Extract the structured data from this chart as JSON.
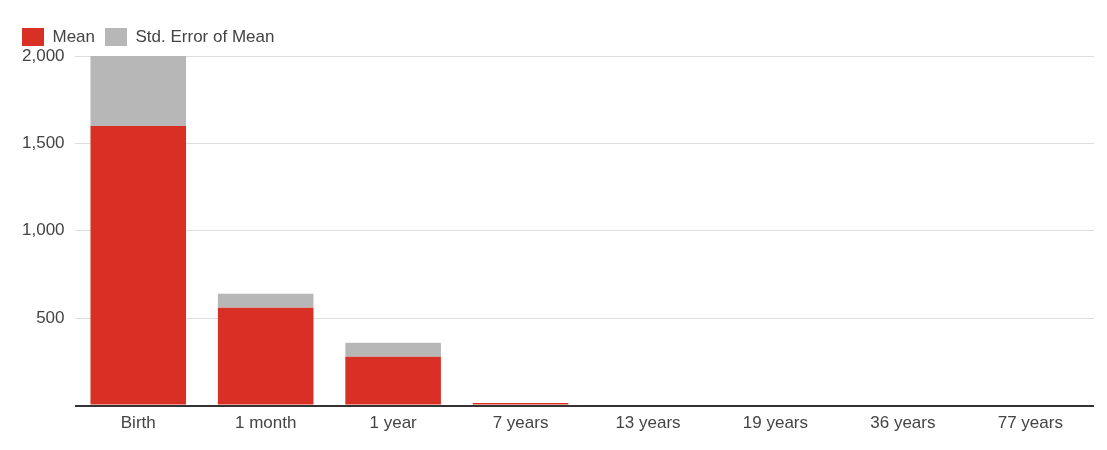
{
  "chart_data": {
    "type": "bar",
    "stacked": true,
    "categories": [
      "Birth",
      "1 month",
      "1 year",
      "7 years",
      "13 years",
      "19 years",
      "36 years",
      "77 years"
    ],
    "series": [
      {
        "name": "Mean",
        "color": "#d93025",
        "values": [
          1600,
          560,
          280,
          15,
          0,
          0,
          0,
          0
        ]
      },
      {
        "name": "Std. Error of Mean",
        "color": "#b7b7b7",
        "values": [
          400,
          80,
          80,
          0,
          0,
          0,
          0,
          0
        ]
      }
    ],
    "ylim": [
      0,
      2000
    ],
    "yticks": [
      {
        "value": 0,
        "label": null
      },
      500,
      {
        "value": 1000,
        "label": "1,000"
      },
      {
        "value": 1500,
        "label": "1,500"
      },
      {
        "value": 2000,
        "label": "2,000"
      }
    ],
    "grid": "y",
    "legend": "top left"
  }
}
